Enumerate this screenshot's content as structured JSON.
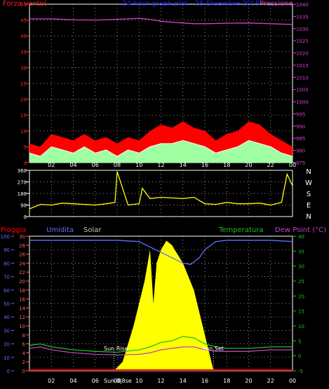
{
  "colors": {
    "wind": "#ff2020",
    "gust": "#ff0000",
    "wind_avg": "#ffffff",
    "wind_fill": "#a0ffa0",
    "pressure": "#d040d0",
    "direction": "#ffff00",
    "humidity": "#6070ff",
    "solar_fill": "#ffff00",
    "temperature": "#20c020",
    "dewpoint": "#c040c0",
    "rain": "#ff0000",
    "title": "#2020ff",
    "grid": "#ffffff"
  },
  "chart_data": [
    {
      "type": "area",
      "title": "24 hour graph,plot - 28 Dicembre 2015",
      "left_label": "Forza vento(",
      "right_label": "Pressione",
      "x_ticks": [
        "02",
        "04",
        "06",
        "08",
        "10",
        "12",
        "14",
        "16",
        "18",
        "20",
        "22",
        "00"
      ],
      "y_left_ticks": [
        "0",
        "5",
        "10",
        "15",
        "20",
        "25",
        "30",
        "35",
        "40",
        "45",
        "50"
      ],
      "y_left_range": [
        0,
        50
      ],
      "y_right_ticks": [
        "975",
        "980",
        "985",
        "990",
        "995",
        "1000",
        "1005",
        "1010",
        "1015",
        "1020",
        "1025",
        "1030",
        "1035",
        "1040"
      ],
      "y_right_range": [
        975,
        1040
      ],
      "grid": true,
      "series": [
        {
          "key": "pressure",
          "x": [
            0,
            2,
            4,
            6,
            8,
            10,
            11,
            12,
            13,
            14,
            15,
            16,
            18,
            20,
            22,
            24
          ],
          "values": [
            1034,
            1034,
            1033.6,
            1033.5,
            1033.8,
            1034.2,
            1033.8,
            1033,
            1032.6,
            1032.3,
            1032,
            1032,
            1032.2,
            1032.3,
            1032,
            1031.7
          ]
        },
        {
          "key": "gust",
          "x": [
            0,
            1,
            2,
            3,
            4,
            5,
            6,
            7,
            8,
            9,
            10,
            11,
            12,
            13,
            14,
            15,
            16,
            17,
            18,
            19,
            20,
            21,
            22,
            23,
            24
          ],
          "values": [
            6,
            5,
            9,
            8,
            7,
            9,
            7,
            8,
            6,
            8,
            7,
            10,
            12,
            11,
            13,
            11,
            10,
            7,
            9,
            10,
            13,
            12,
            9,
            7,
            5
          ]
        },
        {
          "key": "wind",
          "x": [
            0,
            1,
            2,
            3,
            4,
            5,
            6,
            7,
            8,
            9,
            10,
            11,
            12,
            13,
            14,
            15,
            16,
            17,
            18,
            19,
            20,
            21,
            22,
            23,
            24
          ],
          "values": [
            3,
            2,
            5,
            4,
            3,
            5,
            3,
            4,
            2,
            4,
            3,
            5,
            6,
            6,
            7,
            6,
            5,
            3,
            4,
            5,
            7,
            6,
            5,
            3,
            2
          ]
        }
      ]
    },
    {
      "type": "line",
      "x_ticks_hidden": true,
      "y_ticks": [
        "0",
        "90",
        "180",
        "270",
        "360"
      ],
      "y_range": [
        0,
        360
      ],
      "dir_labels": [
        "N",
        "W",
        "S",
        "E",
        "N"
      ],
      "series": [
        {
          "key": "direction",
          "x": [
            0,
            1,
            2,
            3,
            4,
            5,
            6,
            7,
            7.8,
            8,
            9,
            10,
            10.3,
            11,
            12,
            13,
            14,
            15,
            16,
            17,
            18,
            19,
            20,
            21,
            22,
            23,
            23.5,
            24
          ],
          "values": [
            60,
            95,
            90,
            105,
            100,
            95,
            90,
            100,
            110,
            350,
            90,
            100,
            220,
            140,
            150,
            145,
            140,
            150,
            100,
            95,
            110,
            100,
            100,
            105,
            90,
            110,
            330,
            240
          ]
        }
      ]
    },
    {
      "type": "area",
      "labels": {
        "rain": "Pioggia",
        "humidity": "Umidita",
        "solar": "Solar",
        "temperature": "Temperatura",
        "dewpoint": "Dew Point (°C)"
      },
      "x_ticks": [
        "02",
        "04",
        "06",
        "08",
        "10",
        "12",
        "14",
        "16",
        "18",
        "20",
        "22",
        "00"
      ],
      "y_left_outer_ticks": [
        "0",
        "10",
        "20",
        "30",
        "40",
        "50",
        "60",
        "70",
        "80",
        "90",
        "100"
      ],
      "y_left_outer_range": [
        0,
        100
      ],
      "y_left_inner_ticks": [
        "0",
        "2",
        "4",
        "6",
        "8",
        "10",
        "12",
        "14",
        "16",
        "18",
        "20",
        "22",
        "24",
        "26",
        "28",
        "30"
      ],
      "y_left_inner_range": [
        0,
        30
      ],
      "y_right_ticks": [
        "-5",
        "0",
        "5",
        "10",
        "15",
        "20",
        "25",
        "30",
        "35",
        "40"
      ],
      "y_right_range": [
        -5,
        40
      ],
      "annotations": {
        "sunrise": "Sun Rise",
        "sunset": "Sun Set",
        "sunrise_axis": "Sun 0|8se",
        "sunrise_x": 7.7,
        "sunset_x": 16.8
      },
      "grid": true,
      "series": [
        {
          "key": "humidity",
          "x": [
            0,
            2,
            4,
            6,
            8,
            10,
            11,
            12,
            13,
            14,
            14.7,
            15.5,
            16,
            17,
            18,
            20,
            22,
            24
          ],
          "values": [
            97,
            97,
            97,
            97,
            97,
            96,
            92,
            88,
            84,
            80,
            79,
            84,
            90,
            96,
            97,
            97,
            97,
            96
          ]
        },
        {
          "key": "temperature",
          "x": [
            0,
            1,
            2,
            4,
            6,
            8,
            10,
            11,
            12,
            13,
            14,
            15,
            16,
            17,
            18,
            20,
            22,
            24
          ],
          "values": [
            3.5,
            4,
            3,
            2,
            1.5,
            1.2,
            2,
            3,
            4.5,
            5,
            6.5,
            6,
            4,
            3,
            2.5,
            2.5,
            3,
            3
          ]
        },
        {
          "key": "dewpoint",
          "x": [
            0,
            1,
            2,
            4,
            6,
            8,
            10,
            11,
            12,
            13,
            14,
            15,
            16,
            17,
            18,
            20,
            22,
            24
          ],
          "values": [
            2.5,
            3,
            2,
            1,
            0.5,
            0.3,
            0.5,
            1,
            2,
            2.5,
            3,
            3,
            2,
            1.5,
            1.5,
            1.5,
            2,
            2
          ]
        },
        {
          "key": "solar",
          "x": [
            7.7,
            8.5,
            9.5,
            10.5,
            11,
            11.3,
            11.6,
            12,
            12.5,
            13,
            14,
            15,
            16,
            16.8
          ],
          "values": [
            0,
            2,
            10,
            20,
            27,
            15,
            24,
            27,
            29,
            28,
            24,
            18,
            8,
            0
          ]
        }
      ]
    }
  ]
}
